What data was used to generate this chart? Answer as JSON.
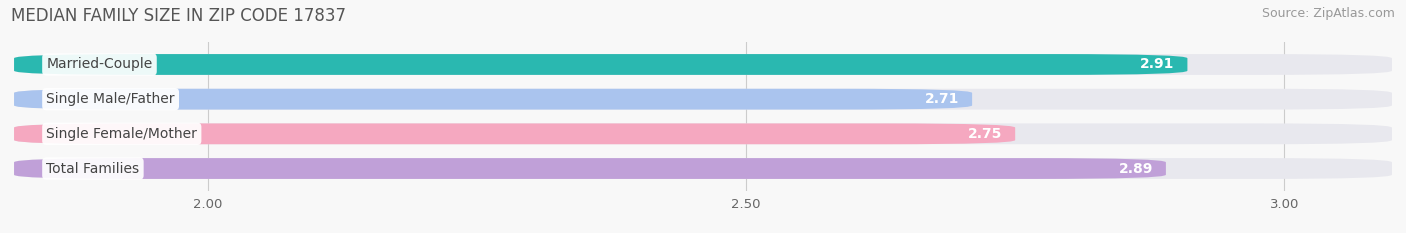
{
  "title": "MEDIAN FAMILY SIZE IN ZIP CODE 17837",
  "source": "Source: ZipAtlas.com",
  "categories": [
    "Married-Couple",
    "Single Male/Father",
    "Single Female/Mother",
    "Total Families"
  ],
  "values": [
    2.91,
    2.71,
    2.75,
    2.89
  ],
  "bar_colors": [
    "#2ab8b0",
    "#aac4ee",
    "#f5a8c0",
    "#c0a0d8"
  ],
  "background_color": "#f8f8f8",
  "bar_background_color": "#e8e8ee",
  "xlim_min": 1.82,
  "xlim_max": 3.1,
  "data_min": 1.82,
  "xticks": [
    2.0,
    2.5,
    3.0
  ],
  "xtick_labels": [
    "2.00",
    "2.50",
    "3.00"
  ],
  "title_fontsize": 12,
  "source_fontsize": 9,
  "bar_height": 0.6,
  "bar_label_fontsize": 10,
  "category_label_fontsize": 10
}
